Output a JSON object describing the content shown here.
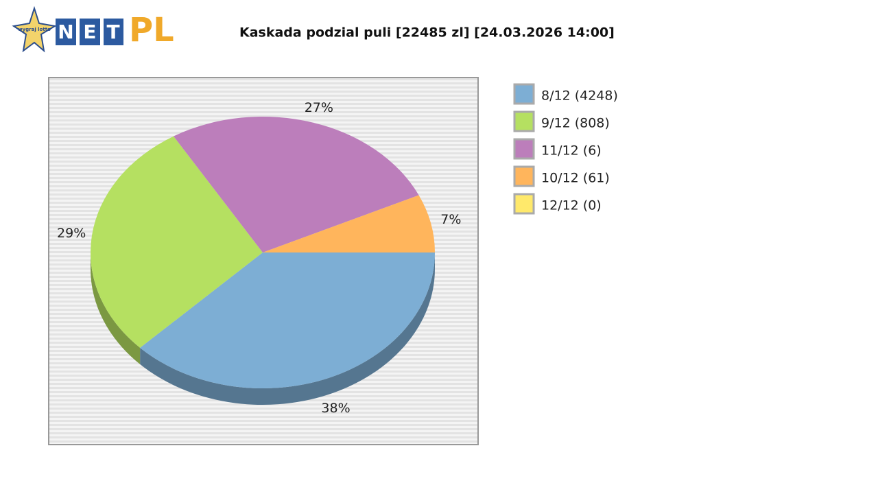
{
  "logo": {
    "star": "wygraj lotto",
    "letters": [
      "N",
      "E",
      "T"
    ],
    "suffix": "PL"
  },
  "chart_data": {
    "type": "pie",
    "title": "Kaskada podzial puli [22485 zl] [24.03.2026 14:00]",
    "categories": [
      "8/12 (4248)",
      "9/12 (808)",
      "11/12 (6)",
      "10/12 (61)",
      "12/12 (0)"
    ],
    "values": [
      38,
      29,
      27,
      7,
      0
    ],
    "value_labels": [
      "38%",
      "29%",
      "27%",
      "7%",
      null
    ],
    "colors": [
      "#7daed4",
      "#b5e061",
      "#bc7ebb",
      "#ffb55c",
      "#ffe96b"
    ],
    "legend": "right"
  }
}
